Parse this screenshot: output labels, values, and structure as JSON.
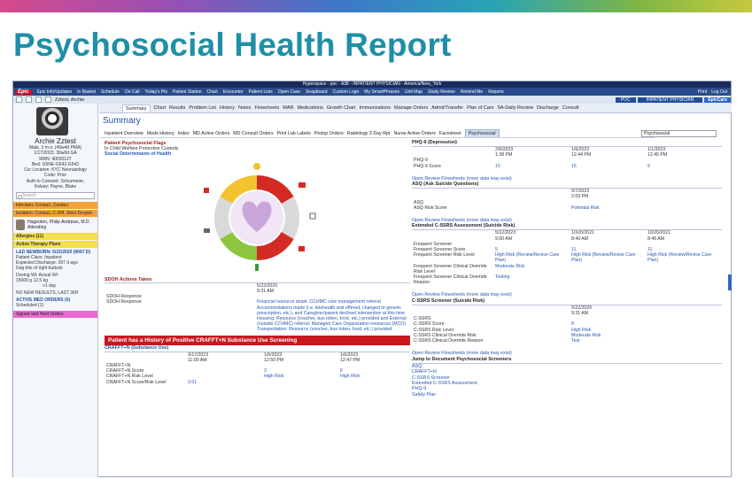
{
  "slide_title": "Psychosocial Health Report",
  "titlebar": "Hyperspace - poc - A38 - INPATIENT PHYSICIAN - America/New_York",
  "epicbar": {
    "logo": "Epic",
    "left_items": [
      "Epic Info/Updates",
      "In Basket",
      "Schedule",
      "On Call",
      "Today's Pts",
      "Patient Station",
      "Chart",
      "Encounter",
      "Patient Lists",
      "Open Case",
      "Snapboard",
      "Custom Logo",
      "My SmartPhrases",
      "Unit Map",
      "Study Review",
      "Remind Me",
      "Reports"
    ],
    "right_items": [
      "Print",
      "Log Out"
    ]
  },
  "patbar": {
    "name": "Zztest, Archie",
    "poc": "POC",
    "role": "INPATIENT PHYSICIAN",
    "epiccare": "EpicCare"
  },
  "sidebar": {
    "name": "Archie Zztest",
    "info": [
      "Male, 3 m.o. (49w4d PMA)",
      "1/17/2023, 36w0d GA",
      "MRN: 40030127",
      "Bed: G5NE-G542-G542",
      "Cur Location: KYC Neonatology",
      "Code: Prior",
      "Auth to Consent: Schurmeier,",
      "Kelsey; Payne, Blake"
    ],
    "search_placeholder": "Search",
    "infection": "Infection: Contact, Contact",
    "isolation": "Isolation: Contact, C-Diff, Strict Droplet",
    "attending_name": "Hagedorn, Philip Andrews, M.D.",
    "attending_role": "Attending",
    "allergies": "Allergies (11)",
    "therapy": "Active Therapy Plans",
    "newborn_title": "L&D NEWBORN: 5/22/2020 (9067 D)",
    "newborn_lines": [
      "Patient Class: Inpatient",
      "Expected Discharge: 297 d ago",
      "Dog bite of right buttock"
    ],
    "dosing": "Dosing Wt: Actual Wt",
    "dosing_vals": "15000 g   12.5 kg",
    "dosing_sub": ">1 day",
    "no_new": "NO NEW RESULTS, LAST 36H",
    "active_med": "ACTIVE MED ORDERS (0)",
    "scheduled": "Scheduled (1)",
    "signed": "Signed and Held Orders"
  },
  "tabs": [
    "Summary",
    "Chart",
    "Results",
    "Problem List",
    "History",
    "Notes",
    "Flowsheets",
    "MAR",
    "Medications",
    "Growth Chart",
    "Immunizations",
    "Manage Orders",
    "Admit/Transfer",
    "Plan of Care",
    "5A-Daily Review",
    "Discharge",
    "Consult"
  ],
  "summary_title": "Summary",
  "report_tabs": [
    "Inpatient Overview",
    "Meds History",
    "Index",
    "MD Active Orders",
    "MD Consult Orders",
    "Print Lab Labels",
    "Pedop Orders",
    "Radiology 3 Day Rpt",
    "Nurse Active Orders",
    "Facesheet",
    "Psychosocial"
  ],
  "report_search": "Psychosocial",
  "flags": {
    "title": "Patient Psychosocial Flags",
    "text": "In Child Welfare Protective Custody"
  },
  "sdoh_link": "Social Determinants of Health",
  "sdoh_actions": {
    "title": "SDOH Actions Taken",
    "date": "5/22/2020",
    "time": "9:31 AM",
    "rows": [
      [
        "SDOH Response",
        ""
      ],
      [
        "SDOH Response",
        "Financial resource strain: CCHMC care management referral Accommodations made (i.e. telehealth visit offered, changed to generic prescription, etc.), and Caregiver/parent declined intervention at this time"
      ],
      [
        "",
        "Housing: Resource (voucher, bus token, food, etc.) provided and External (outside CCHMC) referral: Managed Care Organization resources (MCO)"
      ],
      [
        "",
        "Transportation: Resource (voucher, bus token, food, etc.) provided"
      ]
    ]
  },
  "crafft_banner": "Patient has a History of Positive CRAFFT+N Substance Use Screening",
  "crafft": {
    "title": "CRAFFT+N (Substance Use)",
    "dates": [
      "3/17/2023",
      "1/6/2023",
      "1/6/2023"
    ],
    "times": [
      "11:00 AM",
      "12:50 PM",
      "12:47 PM"
    ],
    "rows": [
      [
        "CRAFFT+N",
        "",
        "",
        ""
      ],
      [
        "CRAFFT+N Score",
        "",
        "3",
        "6"
      ],
      [
        "CRAFFT+N Risk Level",
        "",
        "High Risk",
        "High Risk"
      ],
      [
        "CRAFFT+N Score/Risk Level",
        "3.01",
        "",
        ""
      ]
    ]
  },
  "phq": {
    "title": "PHQ-9 (Depression)",
    "dates": [
      "2/6/2023",
      "1/6/2023",
      "1/1/2023"
    ],
    "times": [
      "1:38 PM",
      "12:44 PM",
      "12:45 PM"
    ],
    "rows": [
      [
        "PHQ-9",
        "",
        "",
        ""
      ],
      [
        "PHQ-9 Score",
        "15",
        "15",
        "9"
      ]
    ],
    "link": "Open Review Flowsheets (more data may exist)"
  },
  "asq": {
    "title": "ASQ (Ask Suicide Questions)",
    "date": "5/7/2023",
    "time": "2:09 PM",
    "rows": [
      [
        "ASQ",
        ""
      ],
      [
        "ASQ Risk Score",
        "Potential Risk"
      ]
    ],
    "link": "Open Review Flowsheets (more data may exist)"
  },
  "cssrs_ext": {
    "title": "Extended C-SSRS Assessment (Suicide Risk)",
    "dates": [
      "5/12/2023",
      "10/20/2021",
      "10/20/2021"
    ],
    "times": [
      "9:00 AM",
      "8:49 AM",
      "8:46 AM"
    ],
    "rows": [
      [
        "Frequent Screener",
        "",
        "",
        ""
      ],
      [
        "Frequent Screener Score",
        "5",
        "11",
        "11"
      ],
      [
        "Frequent Screener Risk Level",
        "High Risk (Review/Revise Care Plan)",
        "High Risk (Review/Revise Care Plan)",
        "High Risk (Review/Revise Care Plan)"
      ],
      [
        "Frequent Screener Clinical Override Risk Level",
        "Moderate Risk",
        "",
        ""
      ],
      [
        "Frequent Screener Clinical Override Reason",
        "Testing",
        "",
        ""
      ]
    ],
    "link": "Open Review Flowsheets (more data may exist)"
  },
  "cssrs": {
    "title": "C-SSRS Screener (Suicide Risk)",
    "date": "5/22/2020",
    "time": "9:31 AM",
    "rows": [
      [
        "C-SSRS",
        ""
      ],
      [
        "C-SSRS Score",
        "8"
      ],
      [
        "C-SSRS Risk Level",
        "High Risk"
      ],
      [
        "C-SSRS Clinical Override Risk",
        "Moderate Risk"
      ],
      [
        "C-SSRS Clinical Override Reason",
        "Test"
      ]
    ],
    "link": "Open Review Flowsheets (more data may exist)"
  },
  "jump": {
    "title": "Jump to Document Psychosocial Screeners",
    "links": [
      "ASQ",
      "CRAFFT+N",
      "C-SSRS Screener",
      "Extended C-SSRS Assessment",
      "PHQ-9",
      "Safety Plan"
    ]
  },
  "wheel_colors": {
    "red": "#d42a24",
    "yellow": "#f2c230",
    "green": "#8cc63f",
    "gray": "#d9d9d9",
    "heart": "#c9a6d9"
  }
}
